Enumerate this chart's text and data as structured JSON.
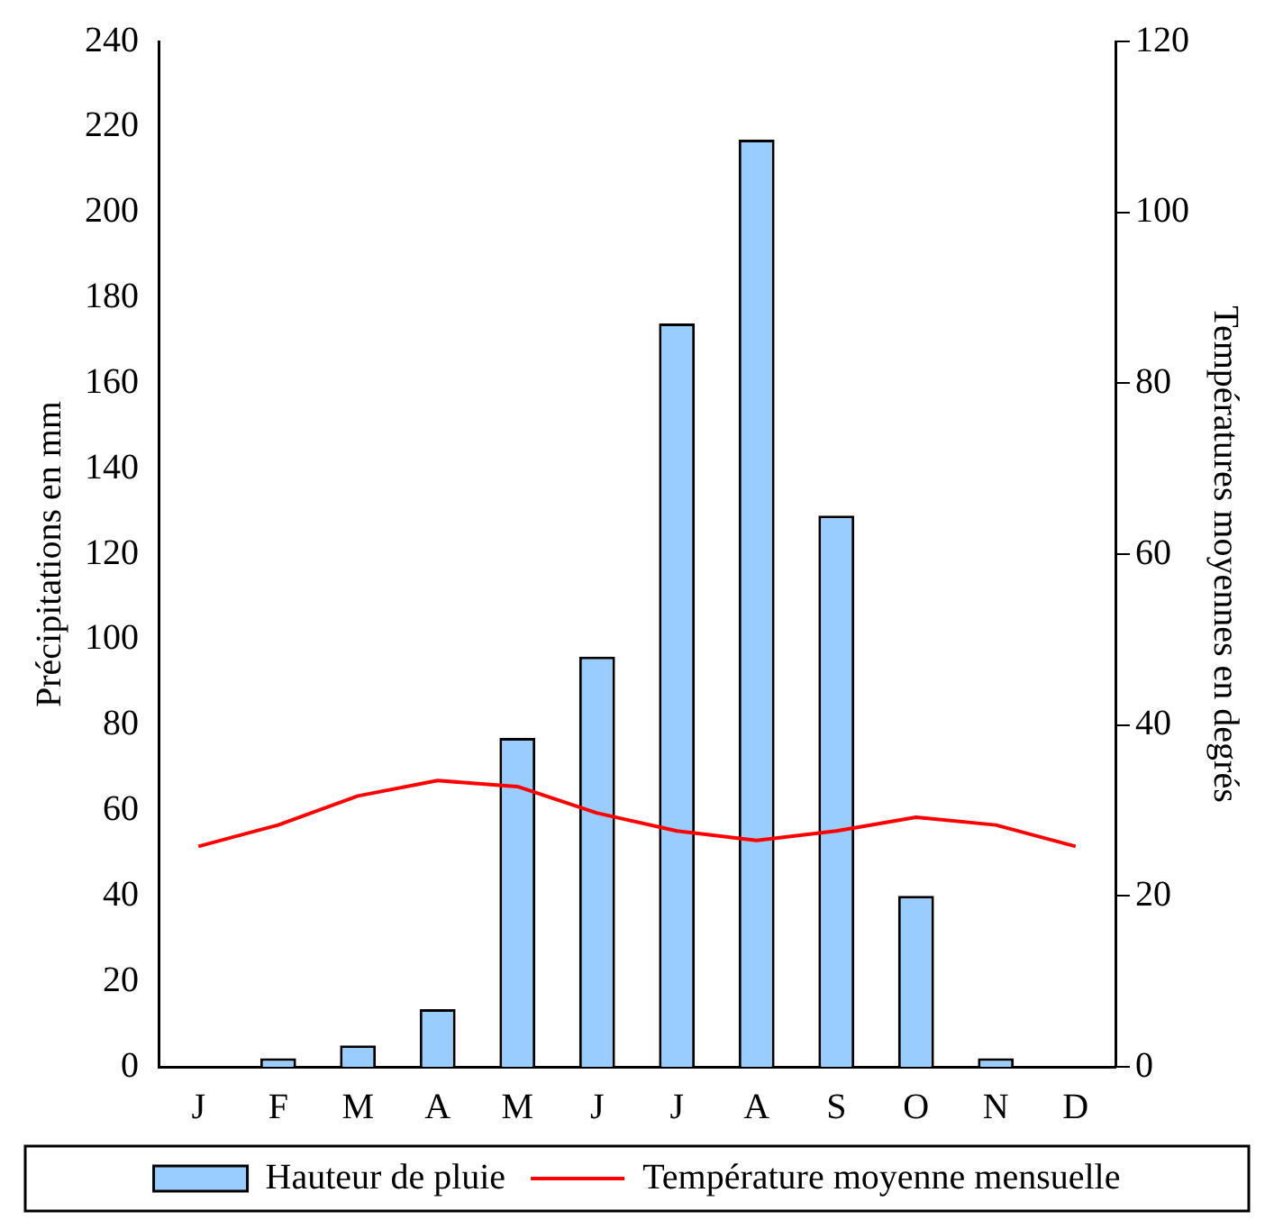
{
  "chart_data": {
    "type": "bar",
    "categories": [
      "J",
      "F",
      "M",
      "A",
      "M",
      "J",
      "J",
      "A",
      "S",
      "O",
      "N",
      "D"
    ],
    "series": [
      {
        "name": "Hauteur de pluie",
        "color": "#99ccff",
        "values": [
          0,
          2,
          5,
          13.5,
          77,
          96,
          174,
          217,
          129,
          40,
          2,
          0
        ]
      },
      {
        "name": "Température moyenne mensuelle",
        "type": "line",
        "axis": "y2",
        "color": "#ff0000",
        "values": [
          25.8,
          28.3,
          31.7,
          33.5,
          32.8,
          29.7,
          27.6,
          26.5,
          27.6,
          29.2,
          28.3,
          25.8
        ]
      }
    ],
    "ylabel": "Précipitations en mm",
    "y2label": "Températures moyennes en degrés",
    "ylim": [
      0,
      240
    ],
    "yticks": [
      0,
      20,
      40,
      60,
      80,
      100,
      120,
      140,
      160,
      180,
      200,
      220,
      240
    ],
    "y2lim": [
      0,
      120
    ],
    "y2ticks": [
      0,
      20,
      40,
      60,
      80,
      100,
      120
    ],
    "grid": false,
    "legend": "bottom",
    "marker": "none",
    "line_style": "solid"
  }
}
